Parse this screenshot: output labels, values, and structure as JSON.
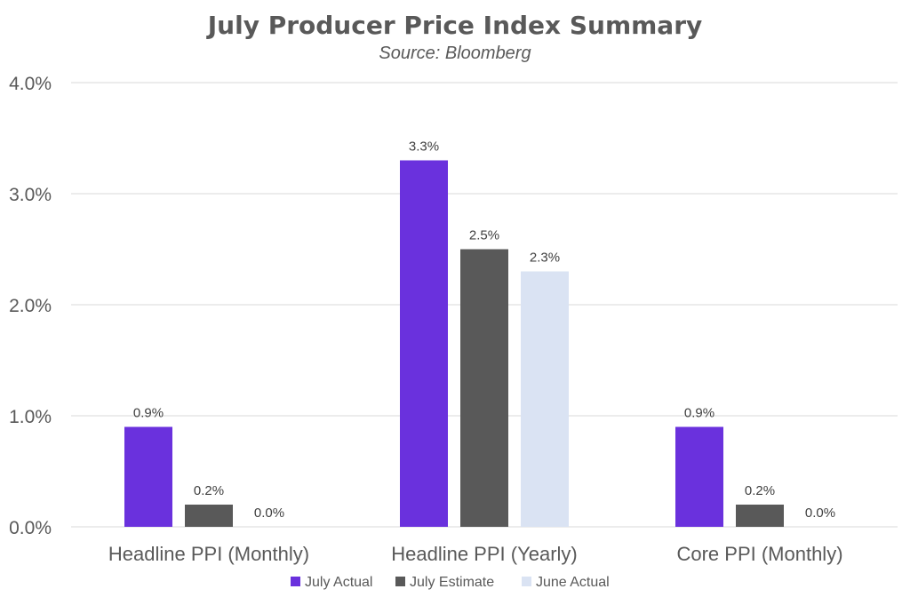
{
  "chart_data": {
    "type": "bar",
    "title": "July Producer Price Index Summary",
    "subtitle": "Source: Bloomberg",
    "categories": [
      "Headline PPI (Monthly)",
      "Headline PPI (Yearly)",
      "Core PPI (Monthly)"
    ],
    "series": [
      {
        "name": "July Actual",
        "values": [
          0.9,
          3.3,
          0.9
        ],
        "labels": [
          "0.9%",
          "3.3%",
          "0.9%"
        ],
        "color": "#6a31dd"
      },
      {
        "name": "July Estimate",
        "values": [
          0.2,
          2.5,
          0.2
        ],
        "labels": [
          "0.2%",
          "2.5%",
          "0.2%"
        ],
        "color": "#595959"
      },
      {
        "name": "June Actual",
        "values": [
          0.0,
          2.3,
          0.0
        ],
        "labels": [
          "0.0%",
          "2.3%",
          "0.0%"
        ],
        "color": "#dae3f3"
      }
    ],
    "yticks": [
      "0.0%",
      "1.0%",
      "2.0%",
      "3.0%",
      "4.0%"
    ],
    "ytick_values": [
      0,
      1,
      2,
      3,
      4
    ],
    "ylim": [
      0,
      4
    ],
    "ylabel": "",
    "xlabel": "",
    "grid": true,
    "legend_position": "bottom"
  }
}
